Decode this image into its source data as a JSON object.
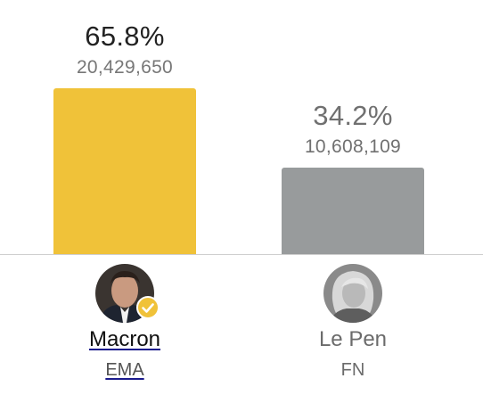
{
  "chart_data": {
    "type": "bar",
    "categories": [
      "Macron",
      "Le Pen"
    ],
    "values": [
      20429650,
      10608109
    ],
    "percent_labels": [
      "65.8%",
      "34.2%"
    ],
    "value_labels": [
      "20,429,650",
      "10,608,109"
    ],
    "parties": [
      "EMA",
      "FN"
    ],
    "winner": "Macron",
    "ylim": [
      0,
      20429650
    ],
    "colors": [
      "#f0c239",
      "#989b9c"
    ],
    "text_colors": [
      "#222222",
      "#707070"
    ],
    "link_color": "#1a1a8c"
  }
}
